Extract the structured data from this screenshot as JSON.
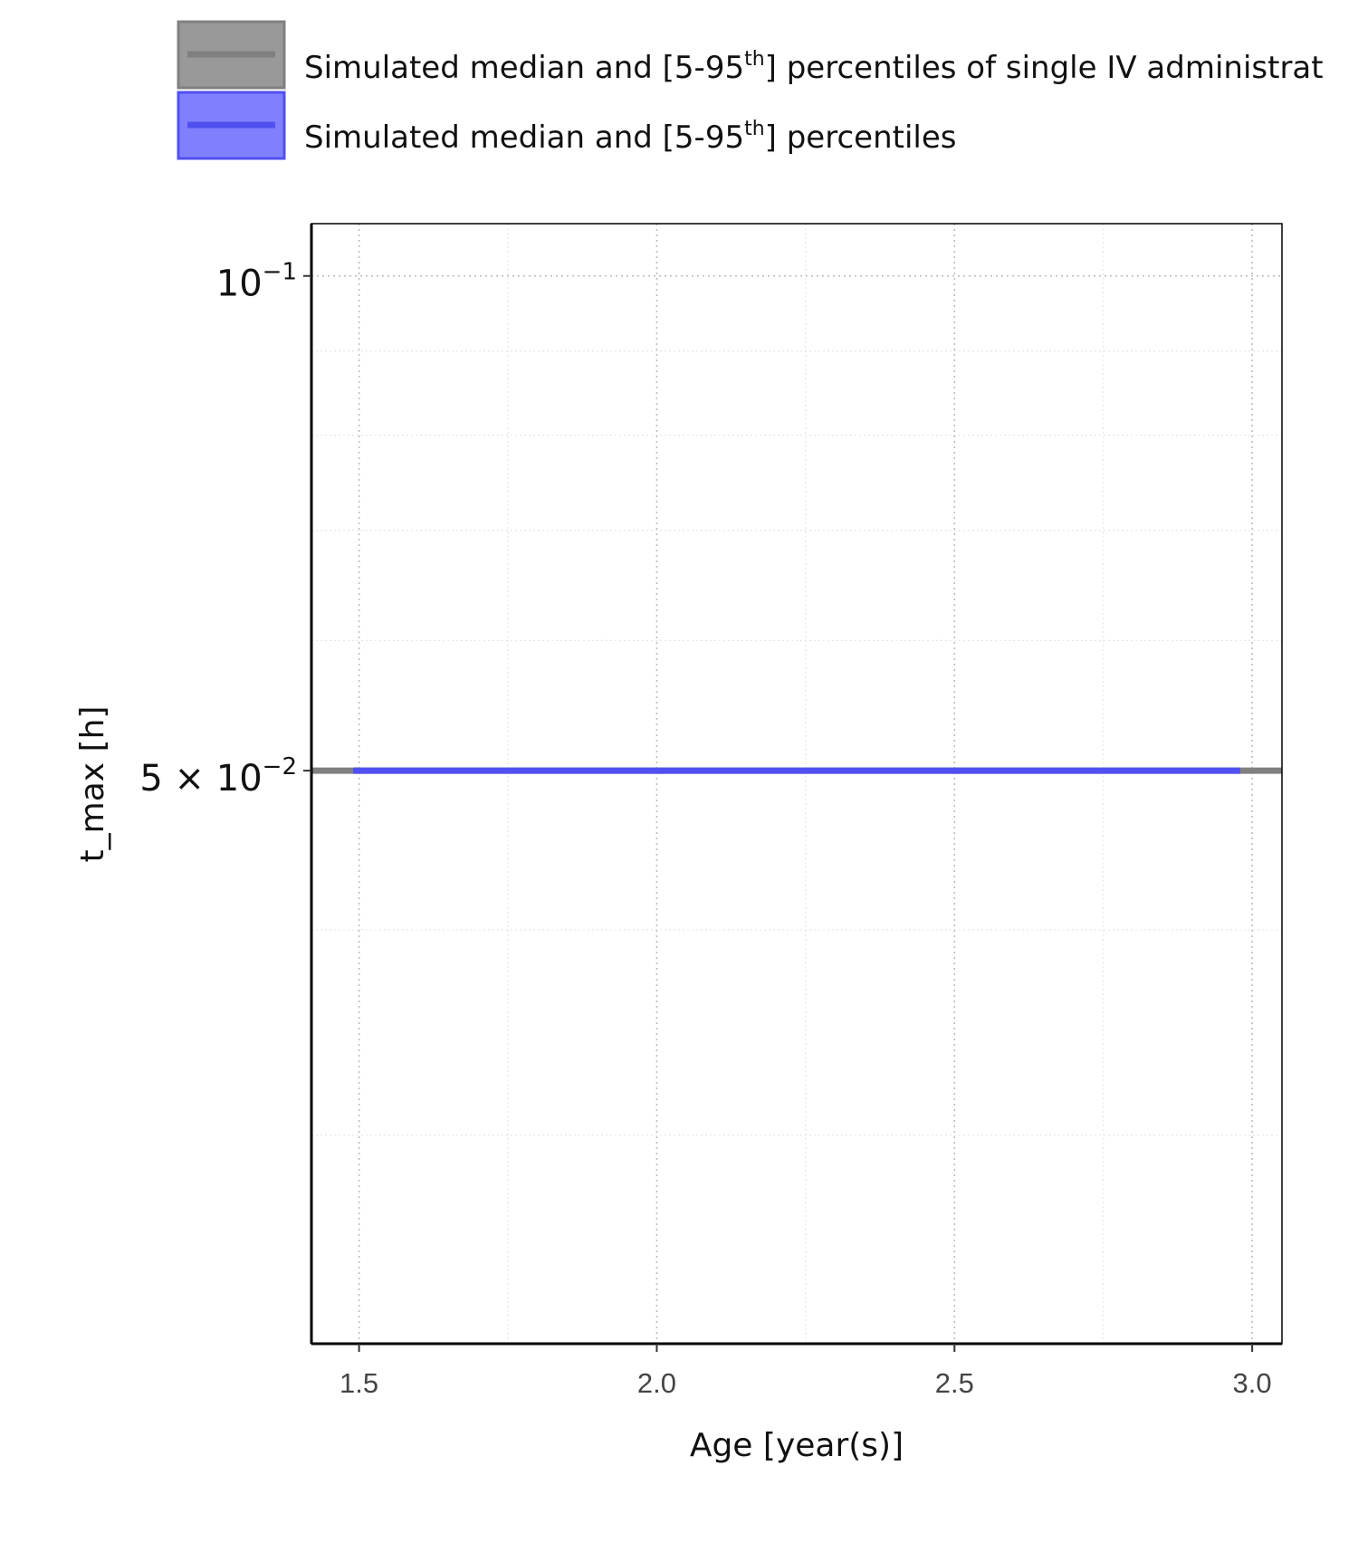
{
  "chart_data": {
    "type": "line",
    "title": "",
    "xlabel": "Age [year(s)]",
    "ylabel": "t_max [h]",
    "xlim": [
      1.42,
      3.05
    ],
    "ylim": [
      0.0224,
      0.1076
    ],
    "yscale": "log",
    "grid": true,
    "legend_position": "top",
    "x_ticks": [
      {
        "value": 1.5,
        "label": "1.5"
      },
      {
        "value": 2.0,
        "label": "2.0"
      },
      {
        "value": 2.5,
        "label": "2.5"
      },
      {
        "value": 3.0,
        "label": "3.0"
      }
    ],
    "y_ticks": [
      {
        "value": 0.1,
        "mantissa": "",
        "base": "10",
        "exponent": "−1"
      },
      {
        "value": 0.05,
        "mantissa": "5 × ",
        "base": "10",
        "exponent": "−2"
      }
    ],
    "y_minor_gridlines": [
      0.09,
      0.08,
      0.07,
      0.06,
      0.04,
      0.03
    ],
    "x_minor_gridlines": [
      1.75,
      2.25,
      2.75
    ],
    "legend": [
      {
        "label": "Simulated median and [5-95",
        "sup": "th",
        "suffix": "] percentiles of single IV administrat",
        "color": "#808080"
      },
      {
        "label": "Simulated median and [5-95",
        "sup": "th",
        "suffix": "] percentiles",
        "color": "#5050f0"
      }
    ],
    "series": [
      {
        "color": "#808080",
        "x": [
          1.42,
          3.05
        ],
        "y": [
          0.05,
          0.05
        ]
      },
      {
        "color": "#5050f0",
        "x": [
          1.49,
          2.98
        ],
        "y": [
          0.05,
          0.05
        ]
      }
    ]
  }
}
